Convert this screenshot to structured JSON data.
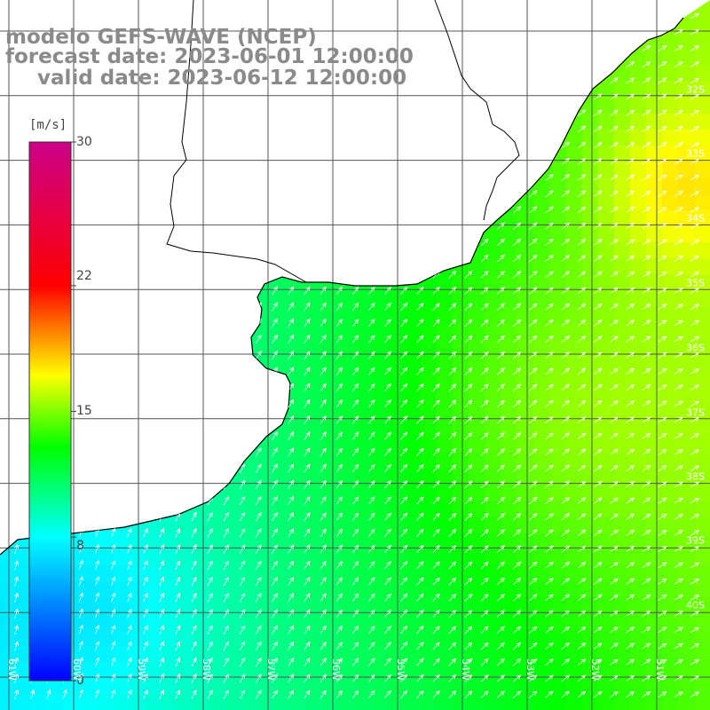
{
  "title": {
    "line1": "modelo GEFS-WAVE (NCEP)",
    "line2": "forecast date: 2023-06-01 12:00:00",
    "line3": "valid date: 2023-06-12 12:00:00"
  },
  "colorbar": {
    "unit": "[m/s]",
    "ticks": [
      "30",
      "22",
      "15",
      "8",
      "0"
    ],
    "tick_values": [
      30,
      22,
      15,
      8,
      0
    ],
    "range": [
      0,
      30
    ],
    "colors": [
      "#0000ff",
      "#00ffff",
      "#00ff00",
      "#ffff00",
      "#ff0000",
      "#cc0088"
    ]
  },
  "map": {
    "lat_labels": [
      "32S",
      "33S",
      "34S",
      "35S",
      "36S",
      "37S",
      "38S",
      "39S",
      "40S"
    ],
    "lon_labels": [
      "61W",
      "60W",
      "59W",
      "58W",
      "57W",
      "56W",
      "55W",
      "54W",
      "53W",
      "52W",
      "51W"
    ],
    "land_color": "#ffffff",
    "grid_color": "#555555",
    "coast_color": "#000000",
    "arrow_color": "#ffffff"
  }
}
